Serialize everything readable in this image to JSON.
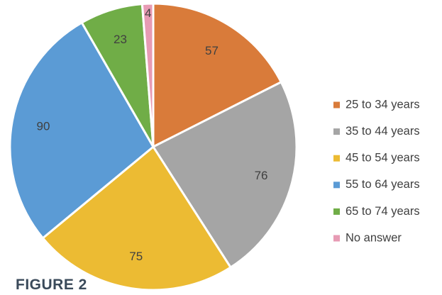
{
  "caption": "FIGURE 2",
  "chart_data": {
    "type": "pie",
    "title": "",
    "legend_position": "right",
    "start_angle": "top",
    "direction": "clockwise",
    "slices": [
      {
        "label": "25 to 34 years",
        "value": 57,
        "color": "#d97b3a"
      },
      {
        "label": "35 to 44 years",
        "value": 76,
        "color": "#a5a5a5"
      },
      {
        "label": "45 to 54 years",
        "value": 75,
        "color": "#ecbb33"
      },
      {
        "label": "55 to 64 years",
        "value": 90,
        "color": "#5b9bd5"
      },
      {
        "label": "65 to 74 years",
        "value": 23,
        "color": "#70ad47"
      },
      {
        "label": "No answer",
        "value": 4,
        "color": "#e79bb4"
      }
    ]
  }
}
